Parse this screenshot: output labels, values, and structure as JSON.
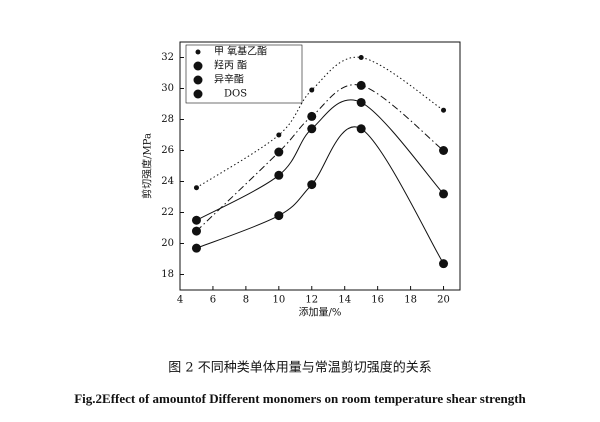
{
  "chart_data": {
    "type": "line",
    "x_label": "添加量/%",
    "y_label": "剪切强度/MPa",
    "caption": "图 2 不同种类单体用量与常温剪切强度的关系",
    "caption_en": "Fig.2Effect of amountof Different monomers on room temperature shear strength",
    "x": [
      5,
      10,
      12,
      15,
      20
    ],
    "series": [
      {
        "name": "甲 氧基乙酯",
        "color": "#111111",
        "line_style": "dot",
        "marker": "small",
        "values": [
          23.6,
          27.0,
          29.9,
          32.0,
          28.6
        ]
      },
      {
        "name": "羟丙 酯",
        "color": "#111111",
        "line_style": "dashdot",
        "marker": "large",
        "values": [
          20.8,
          25.9,
          28.2,
          30.2,
          26.0
        ]
      },
      {
        "name": "异辛酯",
        "color": "#111111",
        "line_style": "solid",
        "marker": "large",
        "values": [
          21.5,
          24.4,
          27.4,
          29.1,
          23.2
        ]
      },
      {
        "name": "DOS",
        "color": "#111111",
        "line_style": "solid",
        "marker": "large",
        "values": [
          19.7,
          21.8,
          23.8,
          27.4,
          18.7
        ]
      }
    ],
    "xlim": [
      4,
      21
    ],
    "xticks": [
      4,
      6,
      8,
      10,
      12,
      14,
      16,
      18,
      20
    ],
    "ylim": [
      17,
      33
    ],
    "yticks": [
      18,
      20,
      22,
      24,
      26,
      28,
      30,
      32
    ]
  }
}
